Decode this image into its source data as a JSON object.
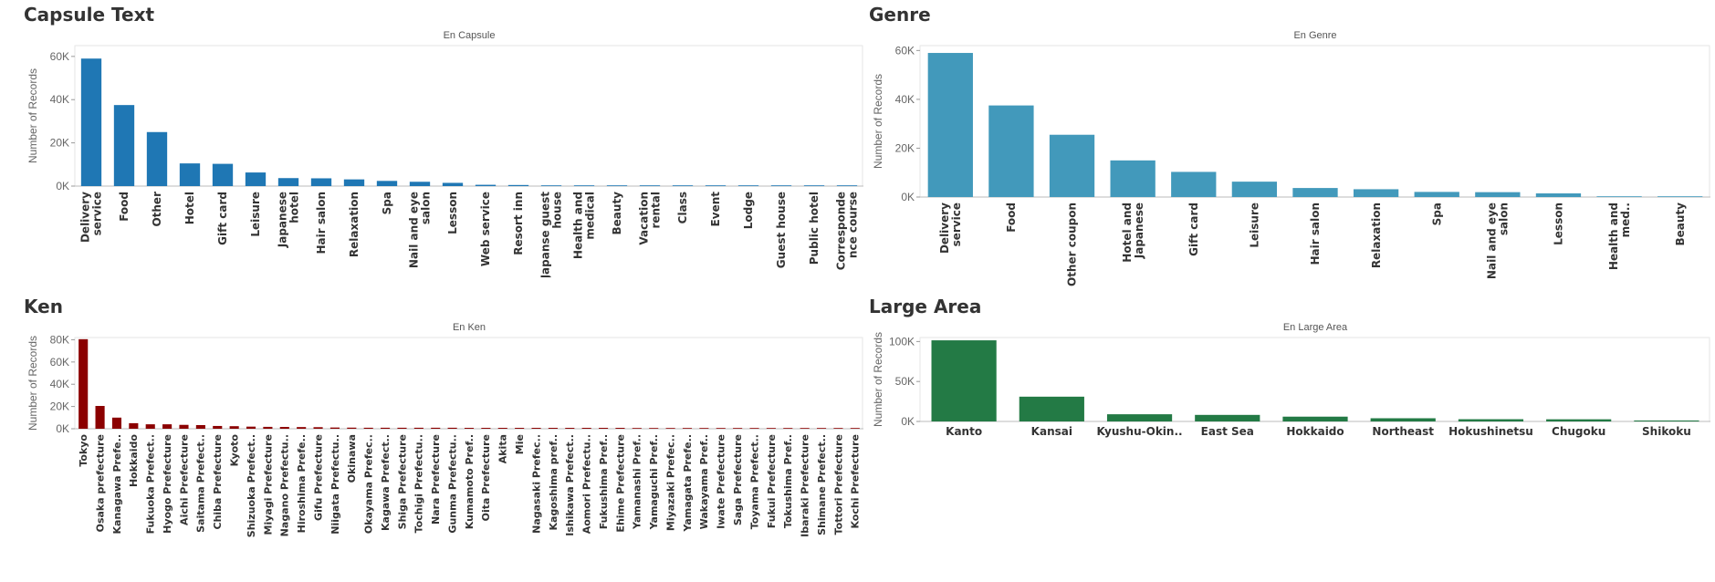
{
  "panels": [
    {
      "title": "Capsule Text"
    },
    {
      "title": "Genre"
    },
    {
      "title": "Ken"
    },
    {
      "title": "Large Area"
    }
  ],
  "chart_data": [
    {
      "type": "bar",
      "title": "En Capsule",
      "ylabel": "Number of Records",
      "yticks": [
        0,
        20000,
        40000,
        60000
      ],
      "ytick_labels": [
        "0K",
        "20K",
        "40K",
        "60K"
      ],
      "ylim": [
        0,
        65000
      ],
      "bar_color": "#1f77b4",
      "label_style": "rotated",
      "categories": [
        "Delivery service",
        "Food",
        "Other",
        "Hotel",
        "Gift card",
        "Leisure",
        "Japanese hotel",
        "Hair salon",
        "Relaxation",
        "Spa",
        "Nail and eye salon",
        "Lesson",
        "Web service",
        "Resort inn",
        "Japanse guest house",
        "Health and medical",
        "Beauty",
        "Vacation rental",
        "Class",
        "Event",
        "Lodge",
        "Guest house",
        "Public hotel",
        "Corresponde nce course"
      ],
      "values": [
        59000,
        37500,
        25000,
        10500,
        10300,
        6300,
        3700,
        3600,
        3100,
        2400,
        2000,
        1500,
        600,
        500,
        100,
        100,
        50,
        30,
        20,
        20,
        10,
        10,
        10,
        5
      ]
    },
    {
      "type": "bar",
      "title": "En Genre",
      "ylabel": "Number of Records",
      "yticks": [
        0,
        20000,
        40000,
        60000
      ],
      "ytick_labels": [
        "0K",
        "20K",
        "40K",
        "60K"
      ],
      "ylim": [
        0,
        62000
      ],
      "bar_color": "#4299bb",
      "label_style": "rotated",
      "categories": [
        "Delivery service",
        "Food",
        "Other coupon",
        "Hotel and Japanese hotel",
        "Gift card",
        "Leisure",
        "Hair salon",
        "Relaxation",
        "Spa",
        "Nail and eye salon",
        "Lesson",
        "Health and med..",
        "Beauty"
      ],
      "values": [
        59000,
        37500,
        25500,
        15000,
        10300,
        6300,
        3700,
        3200,
        2100,
        2000,
        1500,
        100,
        50
      ]
    },
    {
      "type": "bar",
      "title": "En Ken",
      "ylabel": "Number of Records",
      "yticks": [
        0,
        20000,
        40000,
        60000,
        80000
      ],
      "ytick_labels": [
        "0K",
        "20K",
        "40K",
        "60K",
        "80K"
      ],
      "ylim": [
        0,
        82000
      ],
      "bar_color": "#8b0000",
      "label_style": "rotated",
      "categories": [
        "Tokyo",
        "Osaka prefecture",
        "Kanagawa Prefe..",
        "Hokkaido",
        "Fukuoka Prefect..",
        "Hyogo Prefecture",
        "Aichi Prefecture",
        "Saitama Prefect..",
        "Chiba Prefecture",
        "Kyoto",
        "Shizuoka Prefect..",
        "Miyagi Prefecture",
        "Nagano Prefectu..",
        "Hiroshima Prefe..",
        "Gifu Prefecture",
        "Niigata Prefectu..",
        "Okinawa",
        "Okayama Prefec..",
        "Kagawa Prefect..",
        "Shiga Prefecture",
        "Tochigi Prefectu..",
        "Nara Prefecture",
        "Gunma Prefectu..",
        "Kumamoto Pref..",
        "Oita Prefecture",
        "Akita",
        "Mie",
        "Nagasaki Prefec..",
        "Kagoshima pref..",
        "Ishikawa Prefect..",
        "Aomori Prefectu..",
        "Fukushima Pref..",
        "Ehime Prefecture",
        "Yamanashi Pref..",
        "Yamaguchi Pref..",
        "Miyazaki Prefec..",
        "Yamagata Prefe..",
        "Wakayama Pref..",
        "Iwate Prefecture",
        "Saga Prefecture",
        "Toyama Prefect..",
        "Fukui Prefecture",
        "Tokushima Pref..",
        "Ibaraki Prefecture",
        "Shimane Prefect..",
        "Tottori Prefecture",
        "Kochi Prefecture"
      ],
      "values": [
        80500,
        20500,
        10000,
        5000,
        4000,
        4000,
        3500,
        3300,
        2500,
        2300,
        1900,
        1700,
        1600,
        1500,
        1400,
        1100,
        1000,
        900,
        900,
        900,
        900,
        900,
        900,
        800,
        800,
        800,
        800,
        800,
        800,
        800,
        800,
        800,
        800,
        200,
        200,
        200,
        200,
        200,
        100,
        100,
        100,
        100,
        100,
        100,
        100,
        100,
        100
      ]
    },
    {
      "type": "bar",
      "title": "En Large Area",
      "ylabel": "Number of Records",
      "yticks": [
        0,
        50000,
        100000
      ],
      "ytick_labels": [
        "0K",
        "50K",
        "100K"
      ],
      "ylim": [
        0,
        105000
      ],
      "bar_color": "#237a45",
      "label_style": "horizontal",
      "categories": [
        "Kanto",
        "Kansai",
        "Kyushu-Okin..",
        "East Sea",
        "Hokkaido",
        "Northeast",
        "Hokushinetsu",
        "Chugoku",
        "Shikoku"
      ],
      "values": [
        101500,
        31000,
        9000,
        8200,
        6000,
        4000,
        2800,
        2700,
        1200
      ]
    }
  ]
}
